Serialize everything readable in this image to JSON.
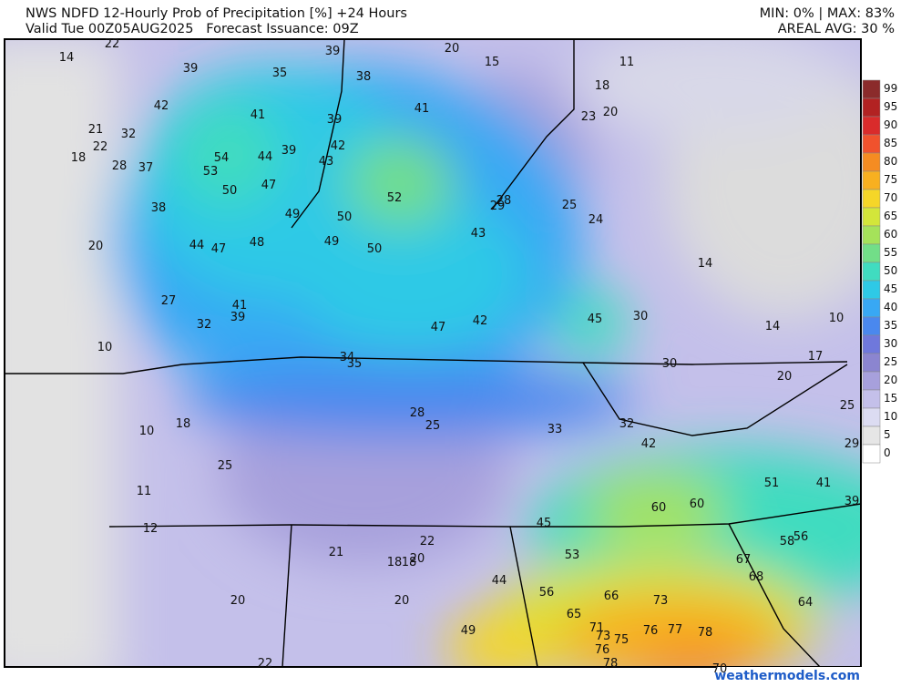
{
  "header": {
    "title": "NWS NDFD 12-Hourly Prob of Precipitation [%] +24 Hours",
    "valid": "Valid Tue 00Z05AUG2025   Forecast Issuance: 09Z",
    "minmax": "MIN: 0% | MAX: 83%",
    "areal": "AREAL AVG: 30 %"
  },
  "colorbar": {
    "labels": [
      99,
      95,
      90,
      85,
      80,
      75,
      70,
      65,
      60,
      55,
      50,
      45,
      40,
      35,
      30,
      25,
      20,
      15,
      10,
      5,
      0
    ],
    "colors": [
      "#8b2b2b",
      "#b22222",
      "#d92b2b",
      "#f0522d",
      "#f58c22",
      "#f8b020",
      "#f5d628",
      "#d3e63a",
      "#a5e25a",
      "#72de88",
      "#40dcc0",
      "#2ec9e6",
      "#38a8f4",
      "#4a88ee",
      "#6f78dc",
      "#8b85d0",
      "#a7a0dc",
      "#c4c0ea",
      "#dcdcf2",
      "#e6e6e6",
      "#ffffff"
    ]
  },
  "map_labels": [
    "22",
    "14",
    "39",
    "35",
    "39",
    "20",
    "15",
    "11",
    "38",
    "18",
    "42",
    "41",
    "41",
    "39",
    "23",
    "20",
    "21",
    "32",
    "22",
    "18",
    "54",
    "44",
    "39",
    "42",
    "43",
    "28",
    "37",
    "53",
    "47",
    "50",
    "52",
    "28",
    "29",
    "25",
    "38",
    "49",
    "50",
    "24",
    "43",
    "49",
    "50",
    "20",
    "44",
    "47",
    "48",
    "14",
    "27",
    "41",
    "39",
    "32",
    "45",
    "30",
    "47",
    "42",
    "14",
    "10",
    "10",
    "34",
    "35",
    "17",
    "30",
    "20",
    "25",
    "28",
    "25",
    "33",
    "32",
    "18",
    "10",
    "42",
    "29",
    "25",
    "51",
    "41",
    "11",
    "39",
    "60",
    "60",
    "45",
    "12",
    "22",
    "21",
    "18",
    "18",
    "20",
    "53",
    "56",
    "58",
    "67",
    "68",
    "44",
    "56",
    "66",
    "73",
    "64",
    "20",
    "20",
    "65",
    "71",
    "49",
    "76",
    "77",
    "78",
    "73",
    "75",
    "76",
    "78",
    "22",
    "70"
  ],
  "watermark": "weathermodels.com"
}
